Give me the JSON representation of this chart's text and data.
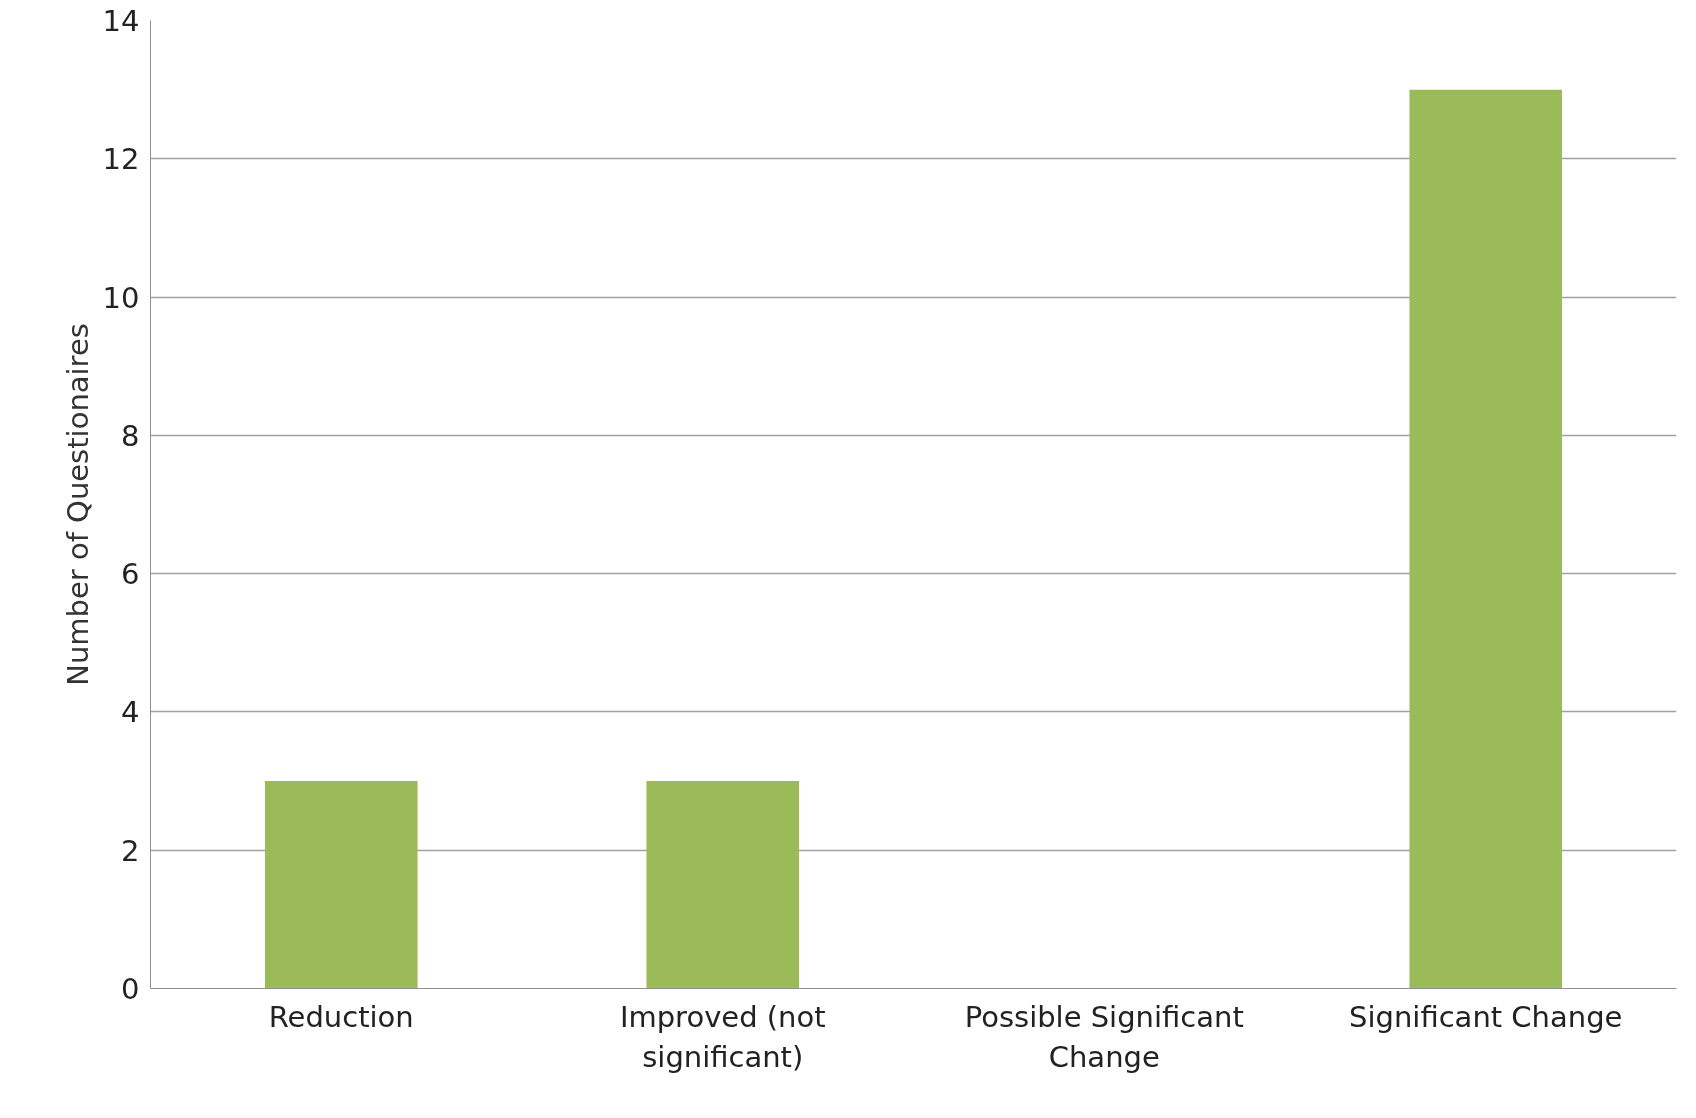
{
  "chart_data": {
    "type": "bar",
    "ylabel": "Number of Questionaires",
    "categories": [
      "Reduction",
      "Improved (not significant)",
      "Possible Significant Change",
      "Significant Change"
    ],
    "values": [
      3,
      3,
      0,
      13
    ],
    "color": "#9bbb59",
    "ylim": [
      0,
      14
    ],
    "yticks": [
      0,
      2,
      4,
      6,
      8,
      10,
      12,
      14
    ],
    "grid": "y"
  }
}
